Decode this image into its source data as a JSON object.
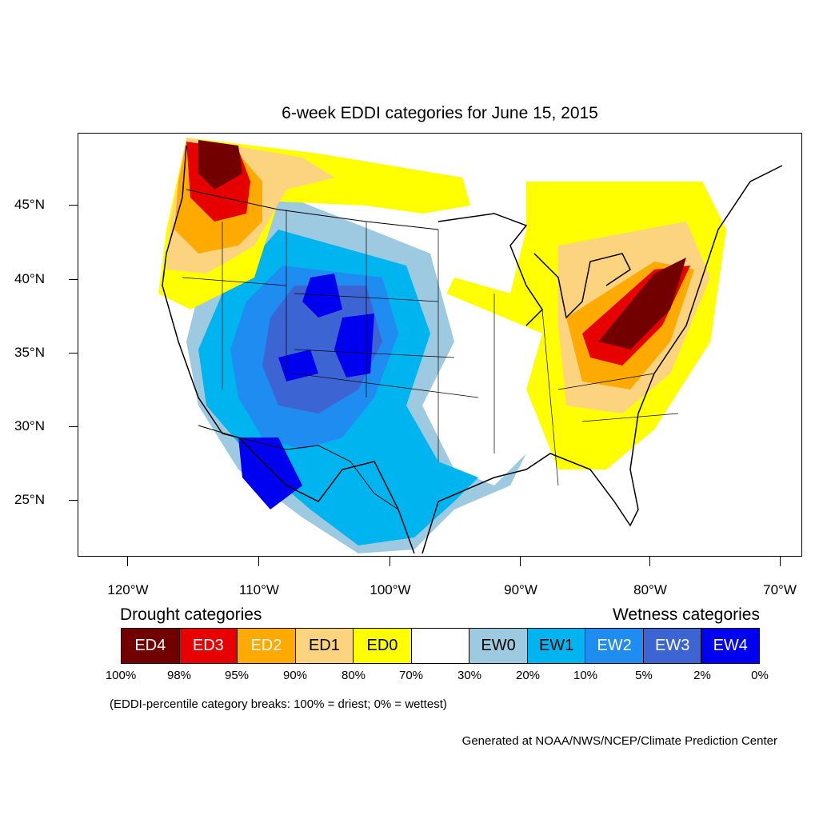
{
  "title": "6-week EDDI categories for June 15, 2015",
  "map": {
    "lat_ticks": [
      "45°N",
      "40°N",
      "35°N",
      "30°N",
      "25°N"
    ],
    "lon_ticks": [
      "120°W",
      "110°W",
      "100°W",
      "90°W",
      "80°W",
      "70°W"
    ]
  },
  "legend": {
    "drought_heading": "Drought categories",
    "wetness_heading": "Wetness categories",
    "categories": [
      {
        "label": "ED4",
        "color": "#730000",
        "text_color": "#ffffff"
      },
      {
        "label": "ED3",
        "color": "#e60000",
        "text_color": "#ffffff"
      },
      {
        "label": "ED2",
        "color": "#ffaa00",
        "text_color": "#ffffff"
      },
      {
        "label": "ED1",
        "color": "#fcd37f",
        "text_color": "#000000"
      },
      {
        "label": "ED0",
        "color": "#ffff00",
        "text_color": "#000000"
      },
      {
        "label": "",
        "color": "#ffffff",
        "text_color": "#000000"
      },
      {
        "label": "EW0",
        "color": "#9ecae1",
        "text_color": "#000000"
      },
      {
        "label": "EW1",
        "color": "#00b4f0",
        "text_color": "#000000"
      },
      {
        "label": "EW2",
        "color": "#1e8cf0",
        "text_color": "#ffffff"
      },
      {
        "label": "EW3",
        "color": "#3c64d2",
        "text_color": "#ffffff"
      },
      {
        "label": "EW4",
        "color": "#0000f0",
        "text_color": "#ffffff"
      }
    ],
    "breaks": [
      "100%",
      "98%",
      "95%",
      "90%",
      "80%",
      "70%",
      "30%",
      "20%",
      "10%",
      "5%",
      "2%",
      "0%"
    ]
  },
  "note": "(EDDI-percentile category breaks: 100% = driest; 0% = wettest)",
  "credit": "Generated at NOAA/NWS/NCEP/Climate Prediction Center"
}
